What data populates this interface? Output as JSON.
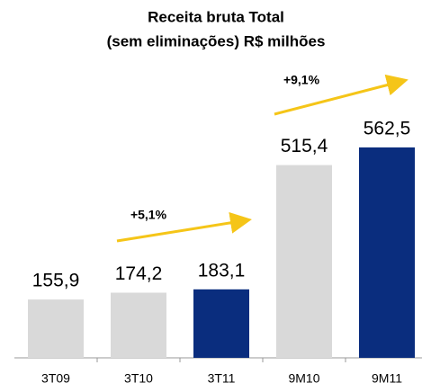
{
  "chart_data": {
    "type": "bar",
    "title": [
      "Receita bruta Total",
      "(sem eliminações) R$ milhões"
    ],
    "categories": [
      "3T09",
      "3T10",
      "3T11",
      "9M10",
      "9M11"
    ],
    "values": [
      155.9,
      174.2,
      183.1,
      515.4,
      562.5
    ],
    "value_labels": [
      "155,9",
      "174,2",
      "183,1",
      "515,4",
      "562,5"
    ],
    "colors": [
      "#d9d9d9",
      "#d9d9d9",
      "#0a2d7e",
      "#d9d9d9",
      "#0a2d7e"
    ],
    "annotations": [
      "+5,1%",
      "+9,1%"
    ],
    "arrow_color": "#f5c518"
  }
}
